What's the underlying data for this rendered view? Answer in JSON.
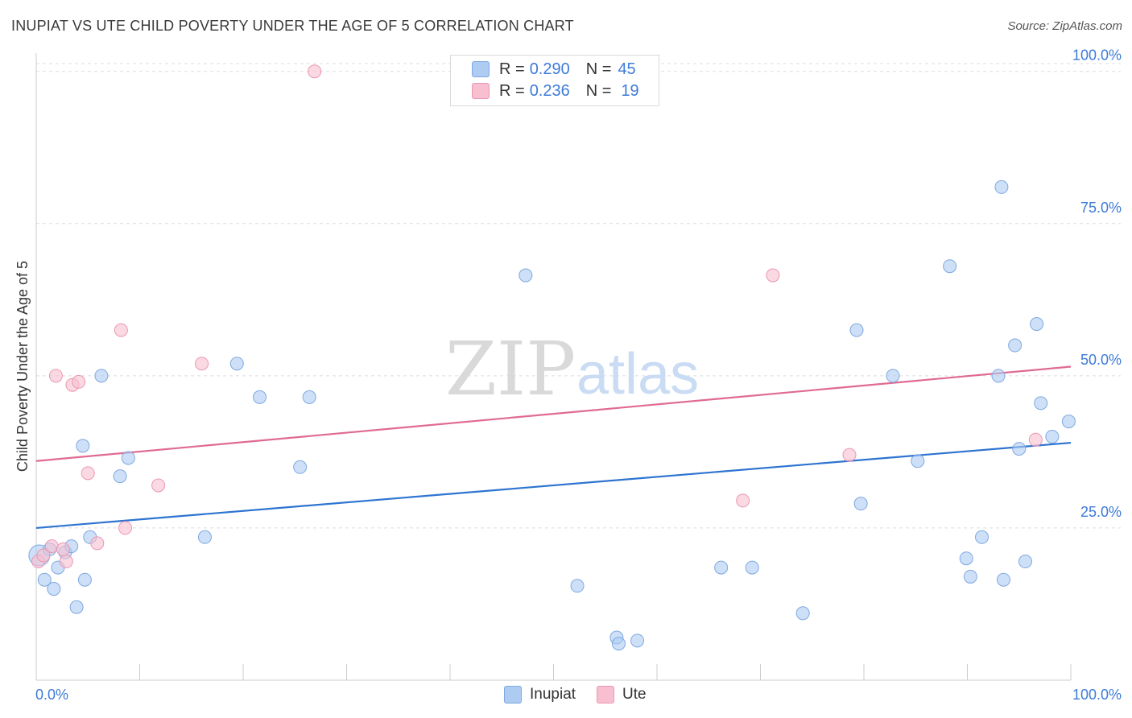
{
  "title": "INUPIAT VS UTE CHILD POVERTY UNDER THE AGE OF 5 CORRELATION CHART",
  "source": "Source: ZipAtlas.com",
  "watermark": {
    "zip": "ZIP",
    "atlas": "atlas"
  },
  "legend": {
    "r_label": "R =",
    "n_label": "N =",
    "inupiat": {
      "r": "0.290",
      "n": "45"
    },
    "ute": {
      "r": "0.236",
      "n": "19"
    }
  },
  "colors": {
    "inupiat_fill": "#aecbf2",
    "inupiat_stroke": "#7ea8e0",
    "inupiat_line": "#2e74d0",
    "ute_fill": "#f7bfd0",
    "ute_stroke": "#ec96b2",
    "ute_line": "#e06a93",
    "tick_label": "#3d7bd9",
    "grid": "#dddddd"
  },
  "chart_data": {
    "type": "scatter",
    "title": "INUPIAT VS UTE CHILD POVERTY UNDER THE AGE OF 5 CORRELATION CHART",
    "xlabel": "",
    "ylabel": "Child Poverty Under the Age of 5",
    "xlim": [
      0,
      100
    ],
    "ylim": [
      0,
      103
    ],
    "x_tick_labels": [
      "0.0%",
      "100.0%"
    ],
    "y_ticks": [
      25,
      50,
      75,
      100
    ],
    "y_tick_labels": [
      "25.0%",
      "50.0%",
      "75.0%",
      "100.0%"
    ],
    "series": [
      {
        "name": "Inupiat",
        "points": [
          [
            0.3,
            20.5
          ],
          [
            0.8,
            16.5
          ],
          [
            1.3,
            21.5
          ],
          [
            1.7,
            15.0
          ],
          [
            2.1,
            18.5
          ],
          [
            2.8,
            21.0
          ],
          [
            3.4,
            22.0
          ],
          [
            3.9,
            12.0
          ],
          [
            4.5,
            38.5
          ],
          [
            4.7,
            16.5
          ],
          [
            5.2,
            23.5
          ],
          [
            6.3,
            50.0
          ],
          [
            8.1,
            33.5
          ],
          [
            8.9,
            36.5
          ],
          [
            16.3,
            23.5
          ],
          [
            19.4,
            52.0
          ],
          [
            21.6,
            46.5
          ],
          [
            25.5,
            35.0
          ],
          [
            26.4,
            46.5
          ],
          [
            47.3,
            66.5
          ],
          [
            52.3,
            15.5
          ],
          [
            56.1,
            7.0
          ],
          [
            56.3,
            6.0
          ],
          [
            58.1,
            6.5
          ],
          [
            66.2,
            18.5
          ],
          [
            69.2,
            18.5
          ],
          [
            74.1,
            11.0
          ],
          [
            79.3,
            57.5
          ],
          [
            79.7,
            29.0
          ],
          [
            82.8,
            50.0
          ],
          [
            85.2,
            36.0
          ],
          [
            88.3,
            68.0
          ],
          [
            89.9,
            20.0
          ],
          [
            90.3,
            17.0
          ],
          [
            91.4,
            23.5
          ],
          [
            93.0,
            50.0
          ],
          [
            93.3,
            81.0
          ],
          [
            93.5,
            16.5
          ],
          [
            94.6,
            55.0
          ],
          [
            95.0,
            38.0
          ],
          [
            95.6,
            19.5
          ],
          [
            96.7,
            58.5
          ],
          [
            97.1,
            45.5
          ],
          [
            98.2,
            40.0
          ],
          [
            99.8,
            42.5
          ]
        ]
      },
      {
        "name": "Ute",
        "points": [
          [
            0.2,
            19.5
          ],
          [
            0.7,
            20.5
          ],
          [
            1.5,
            22.0
          ],
          [
            1.9,
            50.0
          ],
          [
            2.6,
            21.5
          ],
          [
            2.9,
            19.5
          ],
          [
            3.5,
            48.5
          ],
          [
            4.1,
            49.0
          ],
          [
            5.0,
            34.0
          ],
          [
            5.9,
            22.5
          ],
          [
            8.2,
            57.5
          ],
          [
            8.6,
            25.0
          ],
          [
            11.8,
            32.0
          ],
          [
            16.0,
            52.0
          ],
          [
            26.9,
            100.0
          ],
          [
            68.3,
            29.5
          ],
          [
            71.2,
            66.5
          ],
          [
            78.6,
            37.0
          ],
          [
            96.6,
            39.5
          ]
        ]
      }
    ],
    "trendlines": [
      {
        "name": "Inupiat",
        "x": [
          0,
          100
        ],
        "y": [
          25.0,
          39.0
        ]
      },
      {
        "name": "Ute",
        "x": [
          0,
          100
        ],
        "y": [
          36.0,
          51.5
        ]
      }
    ]
  },
  "bottom_legend": [
    "Inupiat",
    "Ute"
  ]
}
